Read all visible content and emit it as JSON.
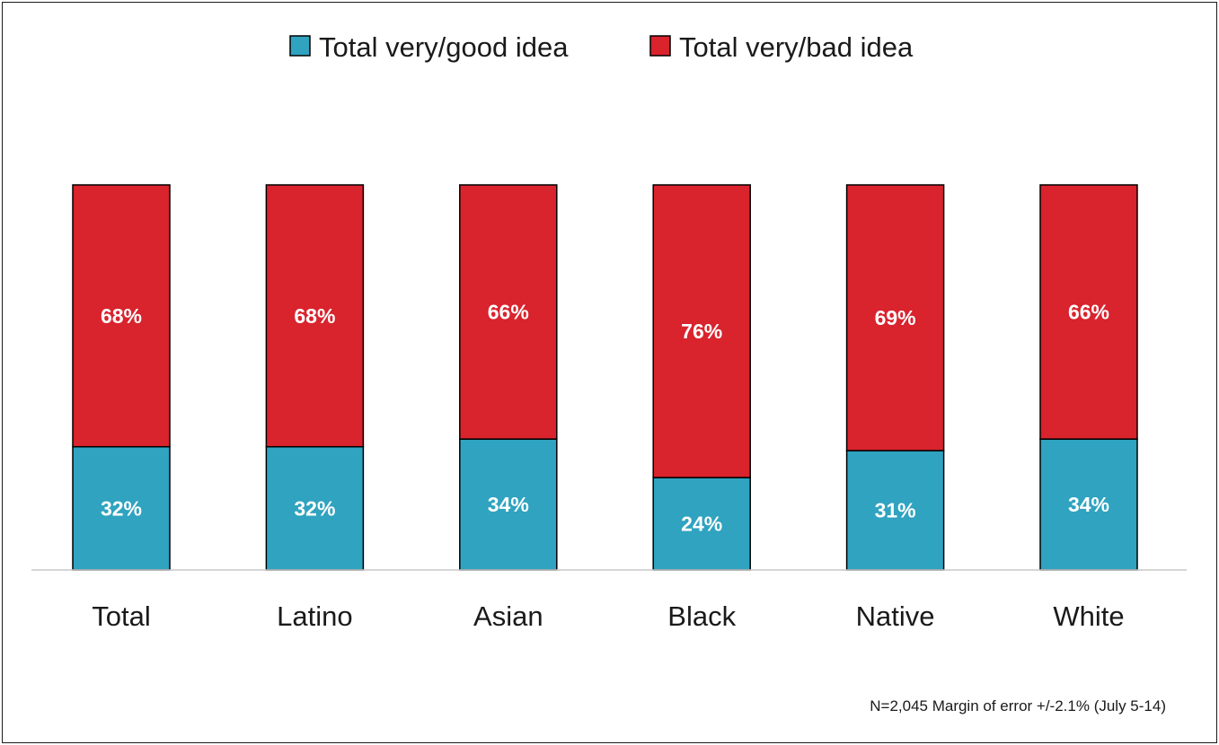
{
  "chart_data": {
    "type": "bar",
    "stacked": true,
    "categories": [
      "Total",
      "Latino",
      "Asian",
      "Black",
      "Native",
      "White"
    ],
    "series": [
      {
        "name": "Total very/good idea",
        "values": [
          32,
          32,
          34,
          24,
          31,
          34
        ],
        "labels": [
          "32%",
          "32%",
          "34%",
          "24%",
          "31%",
          "34%"
        ]
      },
      {
        "name": "Total very/bad idea",
        "values": [
          68,
          68,
          66,
          76,
          69,
          66
        ],
        "labels": [
          "68%",
          "68%",
          "66%",
          "76%",
          "69%",
          "66%"
        ]
      }
    ],
    "ylim": [
      0,
      100
    ],
    "grid": false,
    "legend_position": "top"
  },
  "colors": {
    "good": "#2fa3c0",
    "bad": "#d9232d",
    "bar_edge": "#000000",
    "axis": "#c8c8c8"
  },
  "note": "N=2,045 Margin of error +/-2.1% (July 5-14)"
}
